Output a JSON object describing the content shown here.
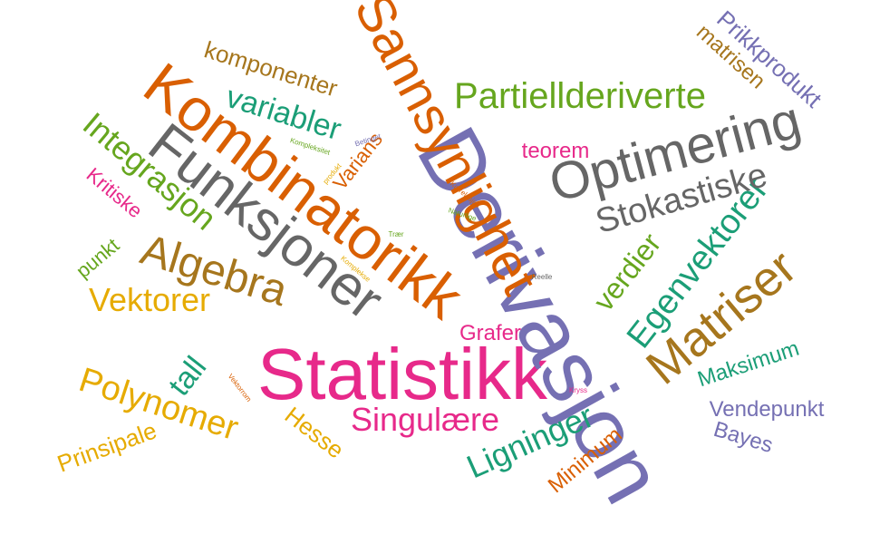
{
  "colors": {
    "orange": "#d95f02",
    "purple": "#7570b3",
    "teal": "#1b9e77",
    "pink": "#e7298a",
    "green": "#66a61e",
    "gold": "#e6ab02",
    "brown": "#a6761d",
    "gray": "#666666"
  },
  "words": [
    {
      "text": "Statistikk",
      "color": "pink"
    },
    {
      "text": "Derivasjon",
      "color": "purple"
    },
    {
      "text": "Kombinatorikk",
      "color": "orange"
    },
    {
      "text": "Sannsynlighet",
      "color": "orange"
    },
    {
      "text": "Funksjoner",
      "color": "gray"
    },
    {
      "text": "Optimering",
      "color": "gray"
    },
    {
      "text": "Algebra",
      "color": "brown"
    },
    {
      "text": "Matriser",
      "color": "brown"
    },
    {
      "text": "Egenvektorer",
      "color": "teal"
    },
    {
      "text": "Partiellderiverte",
      "color": "green"
    },
    {
      "text": "Stokastiske",
      "color": "gray"
    },
    {
      "text": "Integrasjon",
      "color": "green"
    },
    {
      "text": "variabler",
      "color": "teal"
    },
    {
      "text": "komponenter",
      "color": "brown"
    },
    {
      "text": "Polynomer",
      "color": "gold"
    },
    {
      "text": "Vektorer",
      "color": "gold"
    },
    {
      "text": "Ligninger",
      "color": "teal"
    },
    {
      "text": "Singulære",
      "color": "pink"
    },
    {
      "text": "verdier",
      "color": "green"
    },
    {
      "text": "Prikkprodukt",
      "color": "purple"
    },
    {
      "text": "matrisen",
      "color": "brown"
    },
    {
      "text": "Maksimum",
      "color": "teal"
    },
    {
      "text": "Vendepunkt",
      "color": "purple"
    },
    {
      "text": "Bayes",
      "color": "purple"
    },
    {
      "text": "Minimum",
      "color": "orange"
    },
    {
      "text": "Hesse",
      "color": "gold"
    },
    {
      "text": "Prinsipale",
      "color": "gold"
    },
    {
      "text": "tall",
      "color": "teal"
    },
    {
      "text": "teorem",
      "color": "pink"
    },
    {
      "text": "Grafer",
      "color": "pink"
    },
    {
      "text": "Kritiske",
      "color": "pink"
    },
    {
      "text": "punkt",
      "color": "green"
    },
    {
      "text": "Varians",
      "color": "orange"
    },
    {
      "text": "Kompleksitet",
      "color": "green"
    },
    {
      "text": "Betinget",
      "color": "purple"
    },
    {
      "text": "produkt",
      "color": "gold"
    },
    {
      "text": "Korrelasjon",
      "color": "orange"
    },
    {
      "text": "Naturlige",
      "color": "green"
    },
    {
      "text": "Trær",
      "color": "green"
    },
    {
      "text": "Komplekse",
      "color": "gold"
    },
    {
      "text": "Reelle",
      "color": "gray"
    },
    {
      "text": "Kryss",
      "color": "pink"
    },
    {
      "text": "Vektorrom",
      "color": "orange"
    }
  ]
}
